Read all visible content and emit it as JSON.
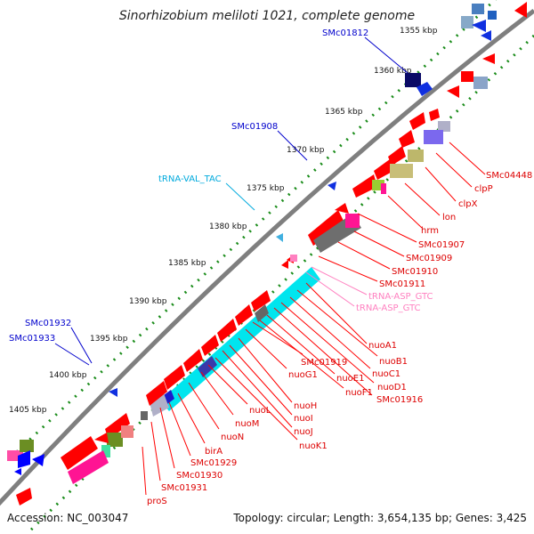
{
  "title": "Sinorhizobium meliloti 1021, complete genome",
  "footer": {
    "accession": "Accession: NC_003047",
    "summary": "Topology: circular; Length: 3,654,135 bp; Genes: 3,425"
  },
  "ticks": [
    "1355 kbp",
    "1360 kbp",
    "1365 kbp",
    "1370 kbp",
    "1375 kbp",
    "1380 kbp",
    "1385 kbp",
    "1390 kbp",
    "1395 kbp",
    "1400 kbp",
    "1405 kbp"
  ],
  "labels_outer": [
    "SMc01812",
    "SMc01908",
    "tRNA-VAL_TAC",
    "SMc01932",
    "SMc01933"
  ],
  "labels_inner": [
    "SMc04448",
    "clpP",
    "clpX",
    "lon",
    "hrm",
    "SMc01907",
    "SMc01909",
    "SMc01910",
    "SMc01911",
    "tRNA-ASP_GTC",
    "tRNA-ASP_GTC",
    "nuoA1",
    "nuoB1",
    "nuoC1",
    "nuoD1",
    "SMc01916",
    "nuoE1",
    "nuoF1",
    "SMc01919",
    "nuoG1",
    "nuoH",
    "nuoI",
    "nuoJ",
    "nuoK1",
    "nuoL",
    "nuoM",
    "nuoN",
    "birA",
    "SMc01929",
    "SMc01930",
    "SMc01931",
    "proS"
  ],
  "colors": {
    "backbone": "#808080",
    "tick_dots": "#1a8c1a",
    "gene_red": "#ff0000",
    "nuo_cyan": "#00e5ee",
    "trna_pink": "#ff69b4",
    "outer_label_blue": "#0000cc",
    "trna_label_cyan": "#00aadd"
  }
}
